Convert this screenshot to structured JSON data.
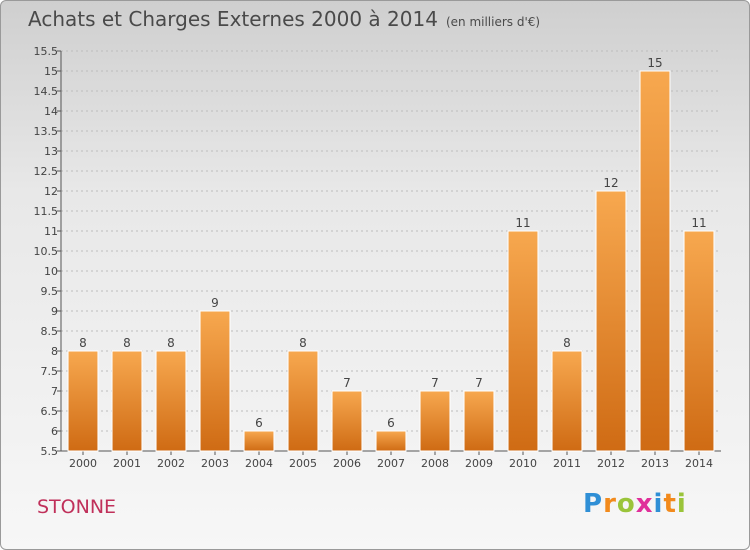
{
  "header": {
    "title": "Achats et Charges Externes 2000 à 2014",
    "subtitle": "(en milliers d'€)"
  },
  "footer": {
    "commune": "STONNE",
    "logo": "Proxiti"
  },
  "colors": {
    "bar_light": "#f7a84f",
    "bar_dark": "#cf6b14",
    "commune": "#c0305a",
    "logo": [
      "#2f8fd6",
      "#f28a1c",
      "#9ac43a",
      "#e0309a",
      "#2f8fd6",
      "#f28a1c",
      "#9ac43a"
    ]
  },
  "chart_data": {
    "type": "bar",
    "title": "Achats et Charges Externes 2000 à 2014",
    "subtitle": "(en milliers d'€)",
    "categories": [
      "2000",
      "2001",
      "2002",
      "2003",
      "2004",
      "2005",
      "2006",
      "2007",
      "2008",
      "2009",
      "2010",
      "2011",
      "2012",
      "2013",
      "2014"
    ],
    "values": [
      8,
      8,
      8,
      9,
      6,
      8,
      7,
      6,
      7,
      7,
      11,
      8,
      12,
      15,
      11
    ],
    "ylim": [
      5.5,
      15.5
    ],
    "yticks": [
      "5.5",
      "6",
      "6.5",
      "7",
      "7.5",
      "8",
      "8.5",
      "9",
      "9.5",
      "10",
      "10.5",
      "11",
      "11.5",
      "12",
      "12.5",
      "13",
      "13.5",
      "14",
      "14.5",
      "15",
      "15.5"
    ],
    "grid": true,
    "xlabel": "",
    "ylabel": ""
  }
}
